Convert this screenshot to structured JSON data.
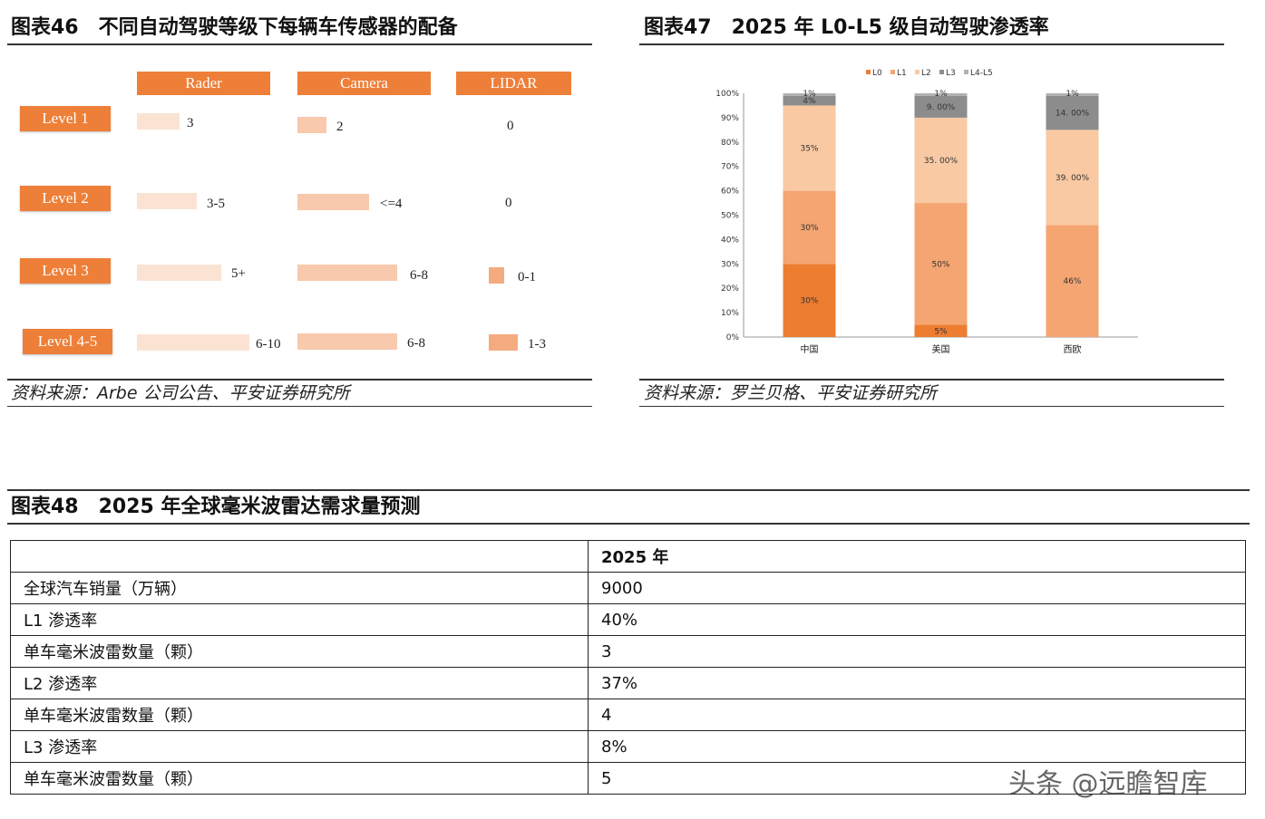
{
  "fig46": {
    "title": "图表46　不同自动驾驶等级下每辆车传感器的配备",
    "columns": [
      "Rader",
      "Camera",
      "LIDAR"
    ],
    "levels": [
      "Level 1",
      "Level 2",
      "Level 3",
      "Level 4-5"
    ],
    "rader_values": [
      "3",
      "3-5",
      "5+",
      "6-10"
    ],
    "camera_values": [
      "2",
      "<=4",
      "6-8",
      "6-8"
    ],
    "lidar_values": [
      "0",
      "0",
      "0-1",
      "1-3"
    ],
    "colors": {
      "header": "#ee7f38",
      "rader": "#fbe3d4",
      "camera": "#f8c9ac",
      "lidar": "#f5ab80"
    },
    "source": "资料来源：Arbe 公司公告、平安证券研究所"
  },
  "fig47": {
    "title": "图表47　2025 年 L0-L5 级自动驾驶渗透率",
    "source": "资料来源：罗兰贝格、平安证券研究所"
  },
  "chart_data": {
    "type": "bar",
    "stacked": true,
    "categories": [
      "中国",
      "美国",
      "西欧"
    ],
    "series": [
      {
        "name": "L0",
        "values": [
          30,
          5,
          0
        ],
        "color": "#ed7d31"
      },
      {
        "name": "L1",
        "values": [
          30,
          50,
          46
        ],
        "color": "#f4a571"
      },
      {
        "name": "L2",
        "values": [
          35,
          35,
          39
        ],
        "color": "#f9c9a3"
      },
      {
        "name": "L3",
        "values": [
          4,
          9,
          14
        ],
        "color": "#8c8c8c"
      },
      {
        "name": "L4-L5",
        "values": [
          1,
          1,
          1
        ],
        "color": "#b0b0b0"
      }
    ],
    "labels": [
      [
        "30%",
        "5%",
        ""
      ],
      [
        "30%",
        "50%",
        "46%"
      ],
      [
        "35%",
        "35. 00%",
        "39. 00%"
      ],
      [
        "4%",
        "9. 00%",
        "14. 00%"
      ],
      [
        "1%",
        "1%",
        "1%"
      ]
    ],
    "yticks": [
      "0%",
      "10%",
      "20%",
      "30%",
      "40%",
      "50%",
      "60%",
      "70%",
      "80%",
      "90%",
      "100%"
    ],
    "ylim": [
      0,
      100
    ],
    "legend": "top"
  },
  "fig48": {
    "title": "图表48　2025 年全球毫米波雷达需求量预测",
    "header": [
      "",
      "2025 年"
    ],
    "rows": [
      [
        "全球汽车销量（万辆）",
        "9000"
      ],
      [
        "L1 渗透率",
        "40%"
      ],
      [
        "单车毫米波雷数量（颗）",
        "3"
      ],
      [
        "L2 渗透率",
        "37%"
      ],
      [
        "单车毫米波雷数量（颗）",
        "4"
      ],
      [
        "L3 渗透率",
        "8%"
      ],
      [
        "单车毫米波雷数量（颗）",
        "5"
      ]
    ]
  },
  "watermark": "头条 @远瞻智库"
}
